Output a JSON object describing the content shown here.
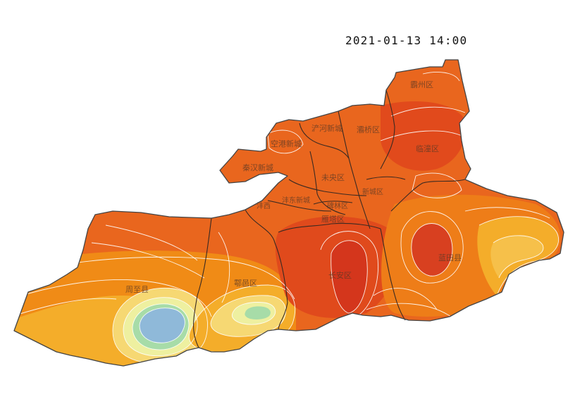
{
  "map": {
    "timestamp": "2021-01-13 14:00",
    "districts": [
      {
        "id": "d1",
        "name": "霸州区"
      },
      {
        "id": "d2",
        "name": "浐河新城"
      },
      {
        "id": "d3",
        "name": "灞桥区"
      },
      {
        "id": "d4",
        "name": "临潼区"
      },
      {
        "id": "d5",
        "name": "空港新城"
      },
      {
        "id": "d6",
        "name": "秦汉新城"
      },
      {
        "id": "d7",
        "name": "未央区"
      },
      {
        "id": "d8",
        "name": "新城区"
      },
      {
        "id": "d9",
        "name": "沣东新城"
      },
      {
        "id": "d10",
        "name": "碑林区"
      },
      {
        "id": "d11",
        "name": "雁塔区"
      },
      {
        "id": "d12",
        "name": "周至县"
      },
      {
        "id": "d13",
        "name": "鄠邑区"
      },
      {
        "id": "d14",
        "name": "长安区"
      },
      {
        "id": "d15",
        "name": "蓝田县"
      },
      {
        "id": "d16",
        "name": "沣西"
      }
    ],
    "colors": {
      "region_base": "#e9661e",
      "hot": "#d4361c",
      "warm": "#f08b16",
      "mild": "#f4ad2a",
      "cool_yellow": "#f6d873",
      "pale": "#eef0a0",
      "mint": "#a7dca8",
      "cold_blue": "#8fb9d9",
      "contour": "#ffffff",
      "border": "#3a2a22"
    }
  }
}
